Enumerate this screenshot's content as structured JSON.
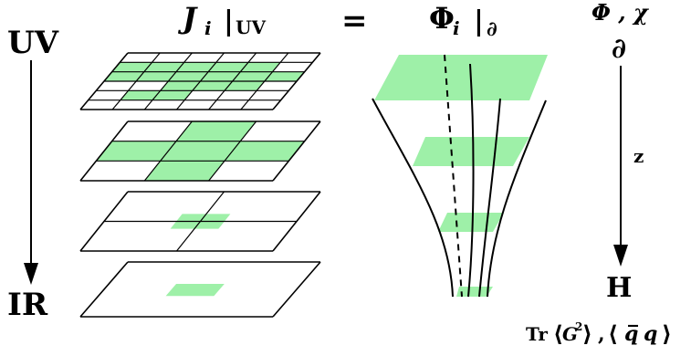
{
  "left_axis": {
    "top_label": "UV",
    "bottom_label": "IR"
  },
  "lattice_header": {
    "symbol": "J",
    "subscript": "i",
    "restriction_bar": "|",
    "restriction": "UV"
  },
  "equals": "=",
  "bulk_header": {
    "symbol": "Φ",
    "subscript": "i",
    "restriction_bar": "|",
    "restriction": "∂"
  },
  "right_axis": {
    "fields_label": "Φ , χ",
    "boundary_label": "∂",
    "coordinate_label": "z",
    "bottom_label": "H",
    "operators": {
      "tr": "Tr",
      "left_angle": "⟨",
      "gluon": "G",
      "power": "2",
      "right_angle": "⟩",
      "comma": ",",
      "quark_bar": "q̅",
      "quark": "q"
    }
  },
  "colors": {
    "highlight": "#9ef0a8",
    "line": "#000000",
    "background": "#ffffff"
  }
}
